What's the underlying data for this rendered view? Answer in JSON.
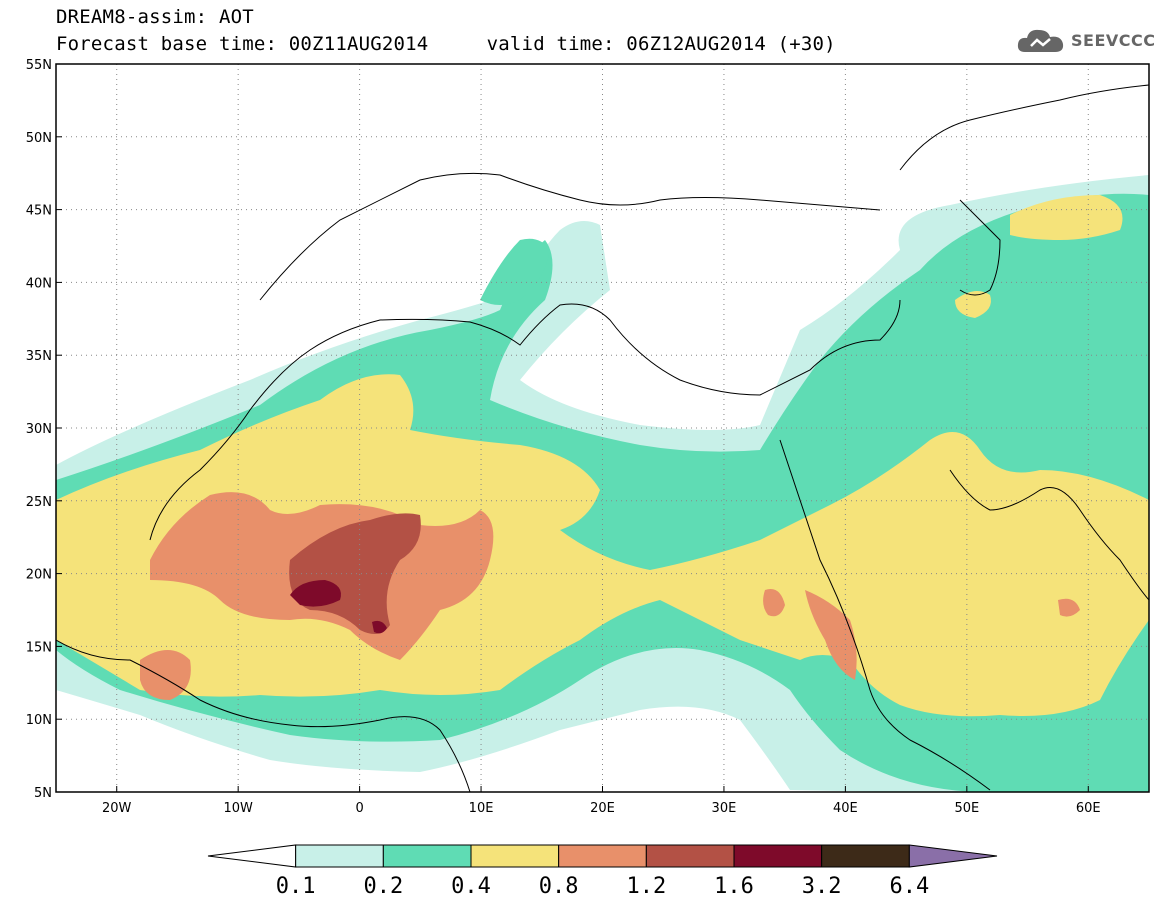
{
  "header": {
    "line1": "DREAM8-assim: AOT",
    "line2": "Forecast base time: 00Z11AUG2014     valid time: 06Z12AUG2014 (+30)"
  },
  "brand": {
    "name": "SEEVCCC",
    "icon": "cloud-icon"
  },
  "map": {
    "lon_range": [
      -25,
      65
    ],
    "lat_range": [
      5,
      55
    ],
    "lon_ticks": [
      {
        "value": -20,
        "label": "20W"
      },
      {
        "value": -10,
        "label": "10W"
      },
      {
        "value": 0,
        "label": "0"
      },
      {
        "value": 10,
        "label": "10E"
      },
      {
        "value": 20,
        "label": "20E"
      },
      {
        "value": 30,
        "label": "30E"
      },
      {
        "value": 40,
        "label": "40E"
      },
      {
        "value": 50,
        "label": "50E"
      },
      {
        "value": 60,
        "label": "60E"
      }
    ],
    "lat_ticks": [
      {
        "value": 5,
        "label": "5N"
      },
      {
        "value": 10,
        "label": "10N"
      },
      {
        "value": 15,
        "label": "15N"
      },
      {
        "value": 20,
        "label": "20N"
      },
      {
        "value": 25,
        "label": "25N"
      },
      {
        "value": 30,
        "label": "30N"
      },
      {
        "value": 35,
        "label": "35N"
      },
      {
        "value": 40,
        "label": "40N"
      },
      {
        "value": 45,
        "label": "45N"
      },
      {
        "value": 50,
        "label": "50N"
      },
      {
        "value": 55,
        "label": "55N"
      }
    ],
    "grid": "dotted"
  },
  "colorbar": {
    "colors": [
      "#ffffff",
      "#c8f0e8",
      "#5fdcb4",
      "#f5e37a",
      "#e8906a",
      "#b35145",
      "#7e0a2a",
      "#3d2a18",
      "#8a6fa8"
    ],
    "labels": [
      "0.1",
      "0.2",
      "0.4",
      "0.8",
      "1.2",
      "1.6",
      "3.2",
      "6.4"
    ]
  }
}
